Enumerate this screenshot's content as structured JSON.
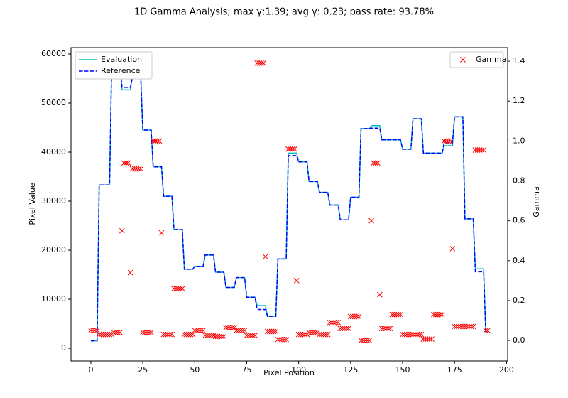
{
  "chart_data": {
    "type": "line",
    "title": "1D Gamma Analysis; max γ:1.39; avg γ: 0.23; pass rate: 93.78%",
    "xlabel": "Pixel Position",
    "ylabel": "Pixel Value",
    "y2label": "Gamma",
    "xlim": [
      -9.55,
      200.55
    ],
    "xticks": [
      0,
      25,
      50,
      75,
      100,
      125,
      150,
      175,
      200
    ],
    "ylim": [
      -2609,
      61304
    ],
    "yticks": [
      0,
      10000,
      20000,
      30000,
      40000,
      50000,
      60000
    ],
    "y2lim": [
      -0.103,
      1.468
    ],
    "y2ticks": [
      {
        "value": 0,
        "label": "0.0"
      },
      0.2,
      0.4,
      0.6,
      0.8,
      {
        "value": 1,
        "label": "1.0"
      },
      1.2,
      1.4
    ],
    "legend_loc": "upper left",
    "legend2_loc": "upper right",
    "x": [
      0,
      3,
      4,
      9,
      10,
      14,
      15,
      19,
      20,
      24,
      25,
      29,
      30,
      34,
      35,
      39,
      40,
      44,
      45,
      49,
      50,
      54,
      55,
      59,
      60,
      64,
      65,
      69,
      70,
      74,
      75,
      79,
      80,
      84,
      85,
      89,
      90,
      94,
      95,
      99,
      100,
      104,
      105,
      109,
      110,
      114,
      115,
      119,
      120,
      124,
      125,
      129,
      130,
      134,
      135,
      139,
      140,
      149,
      150,
      154,
      155,
      159,
      160,
      169,
      170,
      174,
      175,
      179,
      180,
      184,
      185,
      189,
      190,
      191
    ],
    "series": [
      {
        "name": "Evaluation",
        "color": "#00bfbf",
        "dash": "solid",
        "values": [
          1500,
          1500,
          33300,
          33300,
          57800,
          57800,
          52700,
          52700,
          55500,
          55500,
          44500,
          44500,
          37000,
          37000,
          31000,
          31000,
          24200,
          24200,
          16100,
          16100,
          16700,
          16700,
          19000,
          19000,
          15500,
          15500,
          12400,
          12400,
          14400,
          14400,
          10400,
          10400,
          8700,
          8700,
          6500,
          6500,
          18200,
          18200,
          39800,
          39800,
          38000,
          38000,
          34000,
          34000,
          31800,
          31800,
          29200,
          29200,
          26200,
          26200,
          30800,
          30800,
          44800,
          44800,
          45400,
          45400,
          42500,
          42500,
          40600,
          40600,
          46800,
          46800,
          39800,
          39800,
          41300,
          41300,
          47200,
          47200,
          26400,
          26400,
          16200,
          16200,
          3400,
          3400
        ]
      },
      {
        "name": "Reference",
        "color": "#0000ff",
        "dash": "dashed",
        "values": [
          1500,
          1500,
          33300,
          33300,
          57800,
          57800,
          53200,
          53200,
          55200,
          55200,
          44500,
          44500,
          37000,
          37000,
          31000,
          31000,
          24200,
          24200,
          16100,
          16100,
          16700,
          16700,
          19000,
          19000,
          15500,
          15500,
          12400,
          12400,
          14400,
          14400,
          10400,
          10400,
          7900,
          7900,
          6500,
          6500,
          18200,
          18200,
          39300,
          39300,
          38000,
          38000,
          34000,
          34000,
          31800,
          31800,
          29200,
          29200,
          26200,
          26200,
          30800,
          30800,
          44800,
          44800,
          44900,
          44900,
          42500,
          42500,
          40600,
          40600,
          46800,
          46800,
          39800,
          39800,
          41900,
          41900,
          47200,
          47200,
          26400,
          26400,
          15600,
          15600,
          3400,
          3400
        ]
      },
      {
        "name": "Gamma",
        "color": "#ff0000",
        "axis": "y2",
        "marker": "x",
        "x": [
          0,
          1,
          2,
          3,
          4,
          5,
          6,
          7,
          8,
          9,
          10,
          11,
          12,
          13,
          14,
          15,
          16,
          17,
          18,
          19,
          20,
          21,
          22,
          23,
          24,
          25,
          26,
          27,
          28,
          29,
          30,
          31,
          32,
          33,
          34,
          35,
          36,
          37,
          38,
          39,
          40,
          41,
          42,
          43,
          44,
          45,
          46,
          47,
          48,
          49,
          50,
          51,
          52,
          53,
          54,
          55,
          56,
          57,
          58,
          59,
          60,
          61,
          62,
          63,
          64,
          65,
          66,
          67,
          68,
          69,
          70,
          71,
          72,
          73,
          74,
          75,
          76,
          77,
          78,
          79,
          80,
          81,
          82,
          83,
          84,
          85,
          86,
          87,
          88,
          89,
          90,
          91,
          92,
          93,
          94,
          95,
          96,
          97,
          98,
          99,
          100,
          101,
          102,
          103,
          104,
          105,
          106,
          107,
          108,
          109,
          110,
          111,
          112,
          113,
          114,
          115,
          116,
          117,
          118,
          119,
          120,
          121,
          122,
          123,
          124,
          125,
          126,
          127,
          128,
          129,
          130,
          131,
          132,
          133,
          134,
          135,
          136,
          137,
          138,
          139,
          140,
          141,
          142,
          143,
          144,
          145,
          146,
          147,
          148,
          149,
          150,
          151,
          152,
          153,
          154,
          155,
          156,
          157,
          158,
          159,
          160,
          161,
          162,
          163,
          164,
          165,
          166,
          167,
          168,
          169,
          170,
          171,
          172,
          173,
          174,
          175,
          176,
          177,
          178,
          179,
          180,
          181,
          182,
          183,
          184,
          185,
          186,
          187,
          188,
          189,
          190,
          191
        ],
        "values": [
          0.05,
          0.05,
          0.05,
          0.05,
          0.03,
          0.03,
          0.03,
          0.03,
          0.03,
          0.03,
          0.03,
          0.04,
          0.04,
          0.04,
          0.04,
          0.55,
          0.89,
          0.89,
          0.89,
          0.34,
          0.86,
          0.86,
          0.86,
          0.86,
          0.86,
          0.04,
          0.04,
          0.04,
          0.04,
          0.04,
          1.0,
          1.0,
          1.0,
          1.0,
          0.54,
          0.03,
          0.03,
          0.03,
          0.03,
          0.03,
          0.26,
          0.26,
          0.26,
          0.26,
          0.26,
          0.03,
          0.03,
          0.03,
          0.03,
          0.03,
          0.05,
          0.05,
          0.05,
          0.05,
          0.05,
          0.025,
          0.025,
          0.025,
          0.025,
          0.025,
          0.02,
          0.02,
          0.02,
          0.02,
          0.02,
          0.065,
          0.065,
          0.065,
          0.065,
          0.065,
          0.05,
          0.05,
          0.05,
          0.05,
          0.05,
          0.025,
          0.025,
          0.025,
          0.025,
          0.025,
          1.39,
          1.39,
          1.39,
          1.39,
          0.42,
          0.045,
          0.045,
          0.045,
          0.045,
          0.045,
          0.005,
          0.005,
          0.005,
          0.005,
          0.005,
          0.96,
          0.96,
          0.96,
          0.96,
          0.3,
          0.03,
          0.03,
          0.03,
          0.03,
          0.03,
          0.04,
          0.04,
          0.04,
          0.04,
          0.04,
          0.03,
          0.03,
          0.03,
          0.03,
          0.03,
          0.09,
          0.09,
          0.09,
          0.09,
          0.09,
          0.06,
          0.06,
          0.06,
          0.06,
          0.06,
          0.12,
          0.12,
          0.12,
          0.12,
          0.12,
          0.0,
          0.0,
          0.0,
          0.0,
          0.0,
          0.6,
          0.89,
          0.89,
          0.89,
          0.23,
          0.06,
          0.06,
          0.06,
          0.06,
          0.06,
          0.13,
          0.13,
          0.13,
          0.13,
          0.13,
          0.03,
          0.03,
          0.03,
          0.03,
          0.03,
          0.03,
          0.03,
          0.03,
          0.03,
          0.03,
          0.007,
          0.007,
          0.007,
          0.007,
          0.007,
          0.13,
          0.13,
          0.13,
          0.13,
          0.13,
          1.0,
          1.0,
          1.0,
          1.0,
          0.46,
          0.07,
          0.07,
          0.07,
          0.07,
          0.07,
          0.07,
          0.07,
          0.07,
          0.07,
          0.07,
          0.955,
          0.955,
          0.955,
          0.955,
          0.955,
          0.05,
          0.05
        ]
      }
    ]
  }
}
